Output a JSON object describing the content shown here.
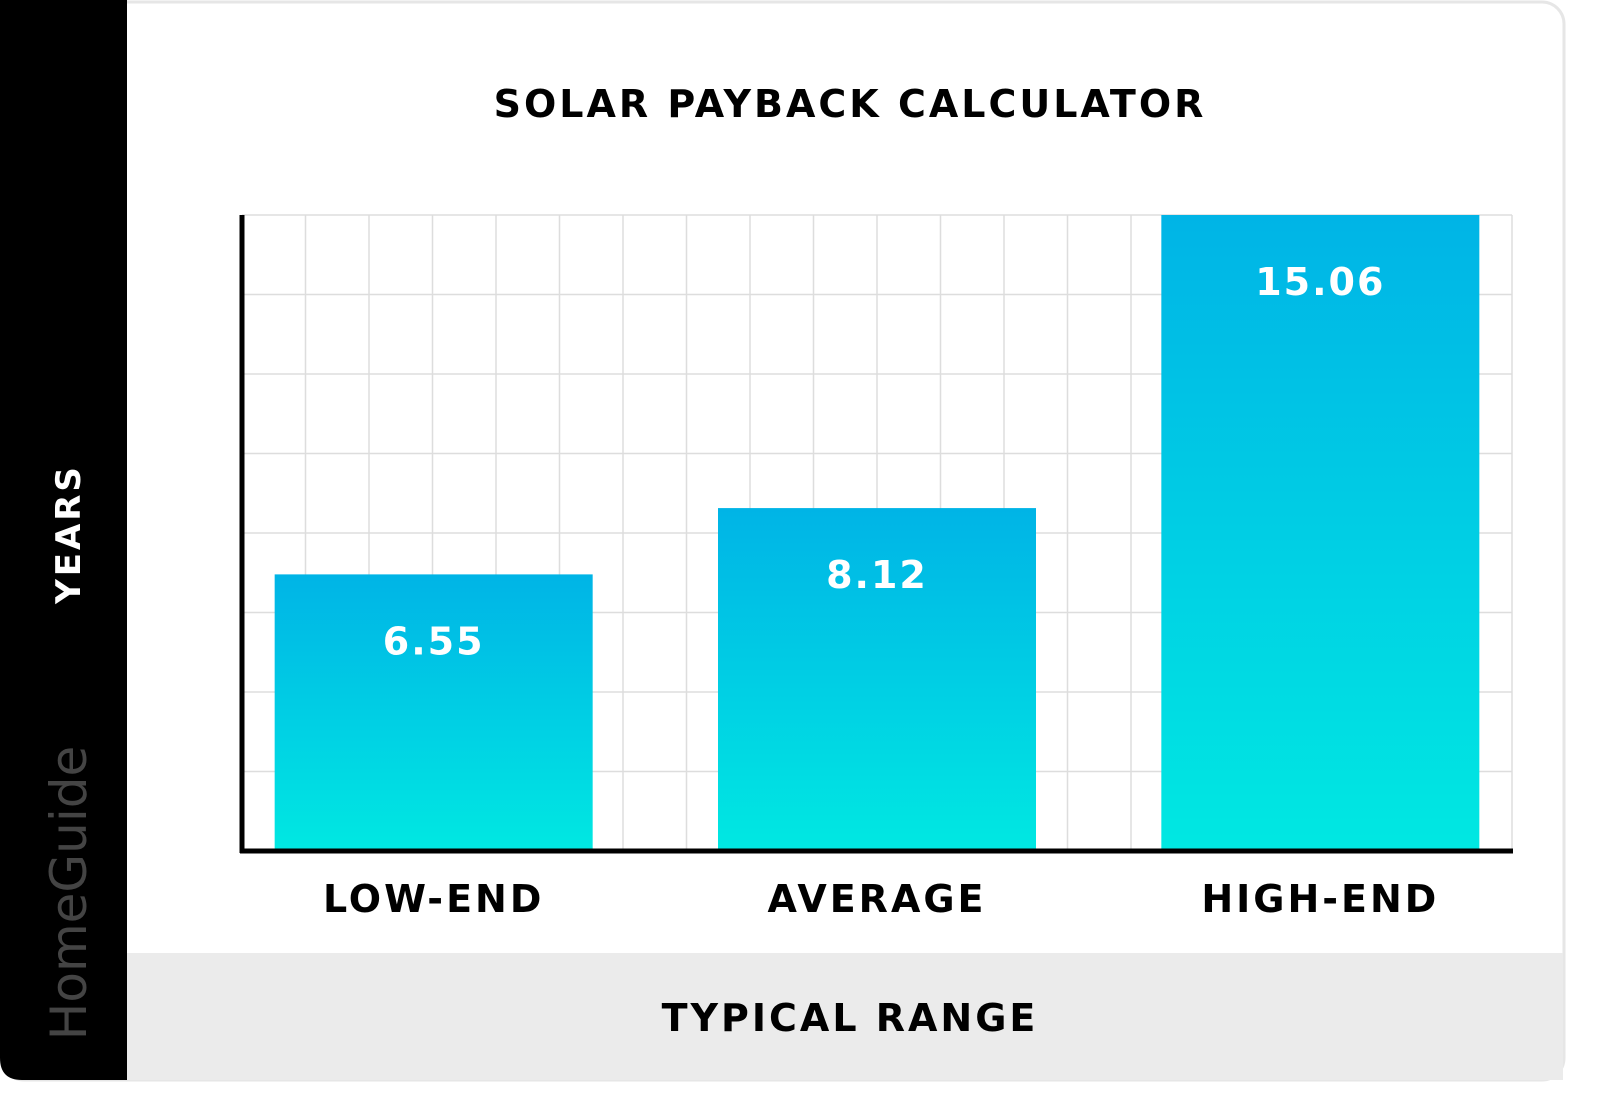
{
  "brand": "HomeGuide",
  "chart_data": {
    "type": "bar",
    "title": "SOLAR PAYBACK CALCULATOR",
    "ylabel": "YEARS",
    "xlabel": "TYPICAL RANGE",
    "categories": [
      "LOW-END",
      "AVERAGE",
      "HIGH-END"
    ],
    "values": [
      6.55,
      8.12,
      15.06
    ],
    "data_labels": [
      "6.55",
      "8.12",
      "15.06"
    ],
    "ylim": [
      0,
      15.06
    ],
    "grid": true,
    "legend": "none",
    "colors": {
      "bar_top": "#00b4e6",
      "bar_bottom": "#00e8e2",
      "sidebar": "#000000",
      "footer": "#ebebeb",
      "grid": "#dddddd",
      "axis": "#000000"
    }
  }
}
